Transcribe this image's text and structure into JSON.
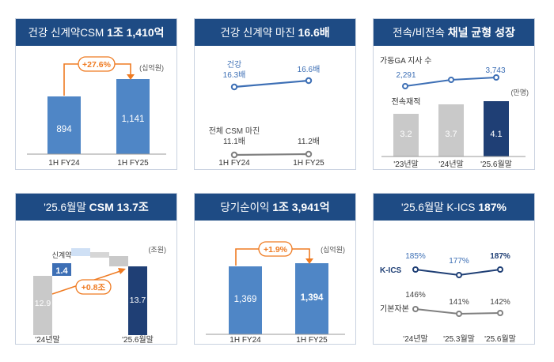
{
  "panels": [
    {
      "title": "건강 신계약CSM",
      "title_bold": "1조 1,410억",
      "chart_data": {
        "type": "bar",
        "unit": "(십억원)",
        "categories": [
          "1H FY24",
          "1H FY25"
        ],
        "values": [
          894,
          1141
        ],
        "value_labels": [
          "894",
          "1,141"
        ],
        "growth": "+27.6%"
      }
    },
    {
      "title": "건강 신계약 마진",
      "title_bold": "16.6배",
      "chart_data": {
        "type": "line",
        "categories": [
          "1H FY24",
          "1H FY25"
        ],
        "series": [
          {
            "name": "건강",
            "values": [
              16.3,
              16.6
            ],
            "value_labels": [
              "16.3배",
              "16.6배"
            ]
          },
          {
            "name": "전체 CSM 마진",
            "values": [
              11.1,
              11.2
            ],
            "value_labels": [
              "11.1배",
              "11.2배"
            ]
          }
        ]
      }
    },
    {
      "title": "전속/비전속",
      "title_bold": "채널 균형 성장",
      "chart_data": {
        "type": "bar",
        "unit": "(만명)",
        "categories": [
          "'23년말",
          "'24년말",
          "'25.6월말"
        ],
        "series": [
          {
            "name": "전속재적",
            "values": [
              3.2,
              3.7,
              4.1
            ],
            "value_labels": [
              "3.2",
              "3.7",
              "4.1"
            ]
          },
          {
            "name": "가동GA 지사 수",
            "values": [
              2291,
              2900,
              3743
            ],
            "value_labels": [
              "2,291",
              "",
              "3,743"
            ]
          }
        ]
      }
    },
    {
      "title": "'25.6월말",
      "title_bold": "CSM 13.7조",
      "chart_data": {
        "type": "bar",
        "unit": "(조원)",
        "categories": [
          "'24년말",
          "",
          "",
          "",
          "",
          "'25.6월말"
        ],
        "values": [
          12.9,
          1.4,
          -0.1,
          -0.3,
          -0.2,
          13.7
        ],
        "value_labels": [
          "12.9",
          "1.4",
          "",
          "",
          "",
          "13.7"
        ],
        "step_labels": [
          "",
          "신계약",
          "",
          "",
          "",
          ""
        ],
        "change": "+0.8조"
      }
    },
    {
      "title": "당기순이익",
      "title_bold": "1조 3,941억",
      "chart_data": {
        "type": "bar",
        "unit": "(십억원)",
        "categories": [
          "1H FY24",
          "1H FY25"
        ],
        "values": [
          1369,
          1394
        ],
        "value_labels": [
          "1,369",
          "1,394"
        ],
        "growth": "+1.9%"
      }
    },
    {
      "title": "'25.6월말 K-ICS",
      "title_bold": "187%",
      "chart_data": {
        "type": "line",
        "categories": [
          "'24년말",
          "'25.3월말",
          "'25.6월말"
        ],
        "series": [
          {
            "name": "K-ICS",
            "values": [
              185,
              177,
              187
            ],
            "value_labels": [
              "185%",
              "177%",
              "187%"
            ]
          },
          {
            "name": "기본자본",
            "values": [
              146,
              141,
              142
            ],
            "value_labels": [
              "146%",
              "141%",
              "142%"
            ]
          }
        ]
      }
    }
  ],
  "colors": {
    "header": "#1e4b84",
    "bar_blue": "#4f86c6",
    "bar_dark": "#1f3f75",
    "bar_gray": "#c9c9c9",
    "accent_orange": "#ef7b22",
    "line_blue": "#3d6fb5",
    "line_gray": "#808080"
  }
}
